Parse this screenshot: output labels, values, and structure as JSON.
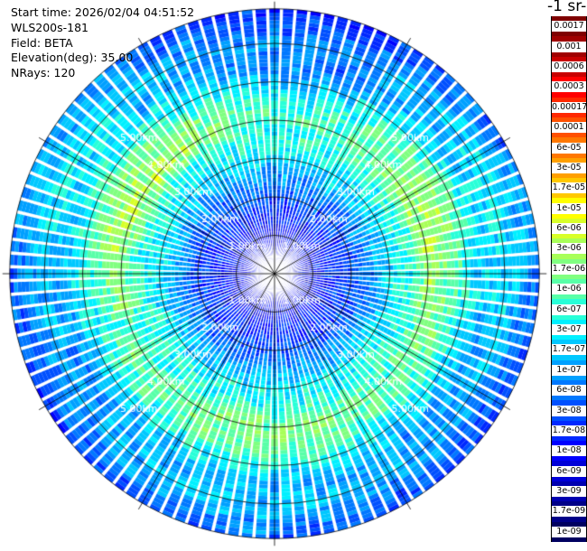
{
  "header": {
    "start_time": "Start time: 2026/02/04 04:51:52",
    "instrument": "WLS200s-181",
    "field": "Field: BETA",
    "elevation": "Elevation(deg): 35.00",
    "nrays": "NRays: 120"
  },
  "colorbar": {
    "units_title": "-1 sr-",
    "labels": [
      "0.0017",
      "0.001",
      "0.0006",
      "0.0003",
      "0.00017",
      "0.0001",
      "6e-05",
      "3e-05",
      "1.7e-05",
      "1e-05",
      "6e-06",
      "3e-06",
      "1.7e-06",
      "1e-06",
      "6e-07",
      "3e-07",
      "1.7e-07",
      "1e-07",
      "6e-08",
      "3e-08",
      "1.7e-08",
      "1e-08",
      "6e-09",
      "3e-09",
      "1.7e-09",
      "1e-09"
    ],
    "colors": [
      "#7f0000",
      "#a00000",
      "#c80000",
      "#ff0000",
      "#ff2800",
      "#ff5000",
      "#ff7800",
      "#ffa000",
      "#ffc800",
      "#ffff00",
      "#d8ff28",
      "#a8ff58",
      "#80ff80",
      "#58ffa8",
      "#28ffd8",
      "#00f0ff",
      "#00c8ff",
      "#00a0ff",
      "#0078ff",
      "#0050ff",
      "#0028ff",
      "#0000ff",
      "#0000d8",
      "#0000b0",
      "#000088",
      "#000060"
    ]
  },
  "chart_data": {
    "type": "heatmap",
    "projection": "polar PPI",
    "field": "BETA",
    "elevation_deg": 35.0,
    "n_rays": 120,
    "range_ring_labels": [
      "1.00km",
      "2.00km",
      "3.00km",
      "4.00km",
      "5.00km"
    ],
    "max_range_km": 6.9,
    "radial_profile": {
      "range_km": [
        0.0,
        0.5,
        1.0,
        1.5,
        2.0,
        2.5,
        3.0,
        3.5,
        4.0,
        4.5,
        5.0,
        5.5,
        6.0,
        6.5,
        6.9
      ],
      "color_index_mean": [
        22,
        22,
        21,
        20,
        19,
        17,
        15,
        14,
        12,
        13,
        15,
        17,
        16,
        18,
        19
      ]
    },
    "colorbar_scale": "log",
    "grid": true
  }
}
